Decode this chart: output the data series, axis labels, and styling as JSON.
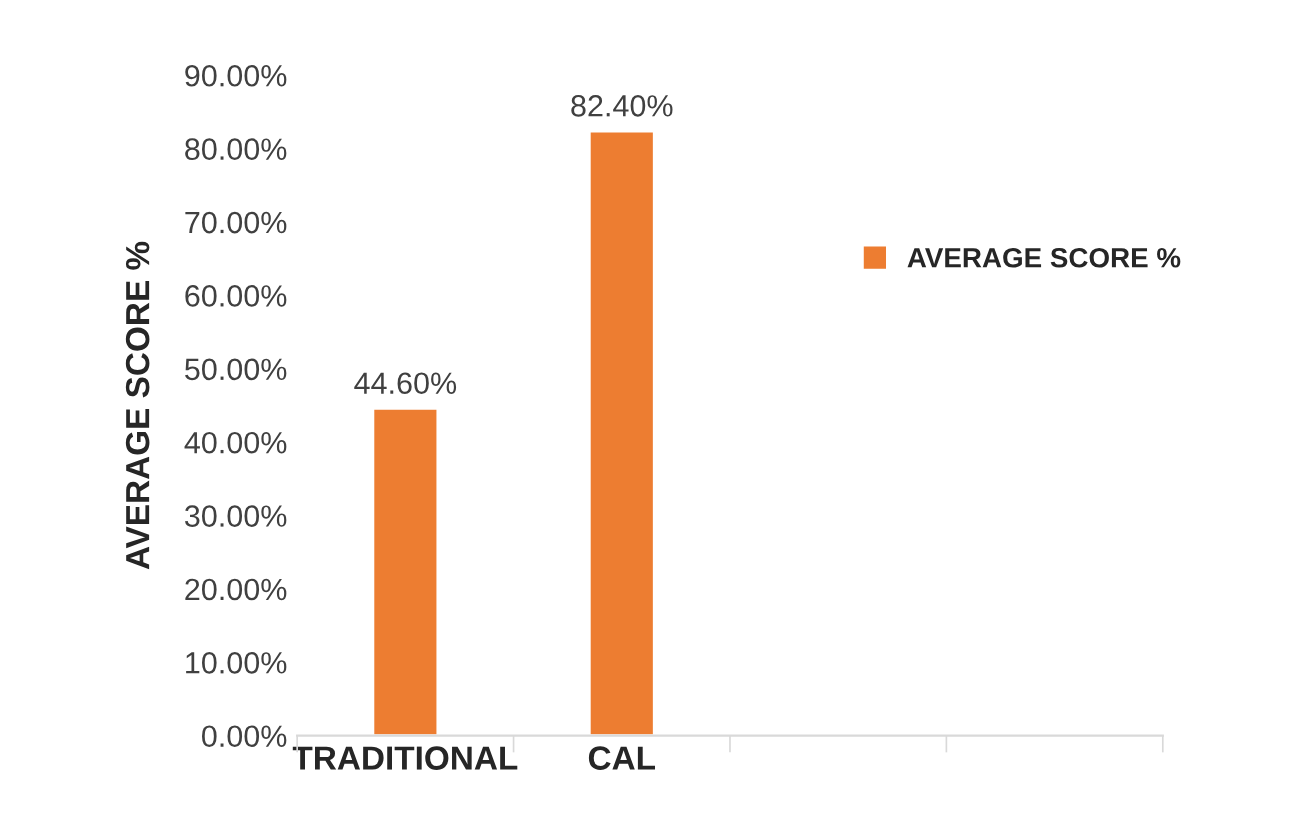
{
  "chart_data": {
    "type": "bar",
    "ylabel": "AVERAGE SCORE %",
    "categories": [
      "TRADITIONAL",
      "CAL",
      null,
      null
    ],
    "series": [
      {
        "name": "AVERAGE SCORE %",
        "color": "#ed7d31",
        "values": [
          44.6,
          82.4,
          null,
          null
        ],
        "value_labels": [
          "44.60%",
          "82.40%",
          null,
          null
        ]
      }
    ],
    "ylim": [
      0,
      90
    ],
    "yticks": [
      {
        "value": 0,
        "label": "0.00%"
      },
      {
        "value": 10,
        "label": "10.00%"
      },
      {
        "value": 20,
        "label": "20.00%"
      },
      {
        "value": 30,
        "label": "30.00%"
      },
      {
        "value": 40,
        "label": "40.00%"
      },
      {
        "value": 50,
        "label": "50.00%"
      },
      {
        "value": 60,
        "label": "60.00%"
      },
      {
        "value": 70,
        "label": "70.00%"
      },
      {
        "value": 80,
        "label": "80.00%"
      },
      {
        "value": 90,
        "label": "90.00%"
      }
    ],
    "grid": false,
    "legend": "right"
  }
}
